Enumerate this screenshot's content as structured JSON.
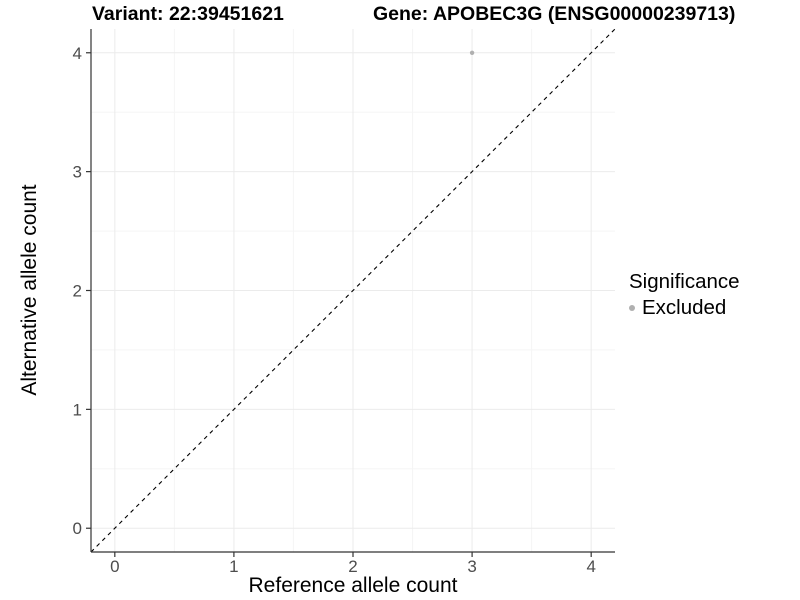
{
  "title": {
    "variant": "Variant: 22:39451621",
    "gene": "Gene: APOBEC3G (ENSG00000239713)"
  },
  "legend": {
    "title": "Significance",
    "entries": [
      {
        "label": "Excluded",
        "color": "#b0b0b0"
      }
    ]
  },
  "chart_data": {
    "type": "scatter",
    "title": "Variant: 22:39451621   Gene: APOBEC3G (ENSG00000239713)",
    "xlabel": "Reference allele count",
    "ylabel": "Alternative allele count",
    "xlim": [
      -0.2,
      4.2
    ],
    "ylim": [
      -0.2,
      4.2
    ],
    "x_ticks": [
      0,
      1,
      2,
      3,
      4
    ],
    "y_ticks": [
      0,
      1,
      2,
      3,
      4
    ],
    "x_minor_ticks": [
      0.5,
      1.5,
      2.5,
      3.5
    ],
    "y_minor_ticks": [
      0.5,
      1.5,
      2.5,
      3.5
    ],
    "grid": "major+minor",
    "legend_position": "right",
    "reference_line": {
      "kind": "identity",
      "from": [
        -0.2,
        -0.2
      ],
      "to": [
        4.2,
        4.2
      ],
      "style": "dashed",
      "color": "#000000"
    },
    "series": [
      {
        "name": "Excluded",
        "color": "#b0b0b0",
        "points": [
          {
            "x": 3,
            "y": 4
          }
        ]
      }
    ],
    "colors": {
      "grid_major": "#ebebeb",
      "grid_minor": "#f5f5f5",
      "axis_line": "#333333",
      "tick_label": "#4d4d4d"
    }
  }
}
